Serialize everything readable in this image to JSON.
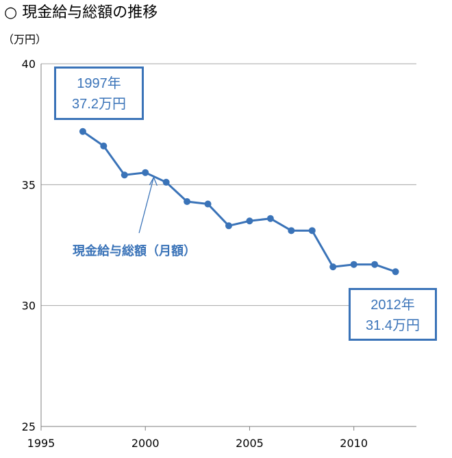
{
  "title": "○ 現金給与総額の推移",
  "unit_label": "（万円）",
  "colors": {
    "series": "#3a73b8",
    "grid": "#a6a6a6",
    "axis": "#7f7f7f"
  },
  "chart_data": {
    "type": "line",
    "title": "現金給与総額の推移",
    "ylabel": "（万円）",
    "xlabel": "",
    "xlim": [
      1995,
      2013
    ],
    "ylim": [
      25,
      40
    ],
    "x_ticks": [
      "1995",
      "2000",
      "2005",
      "2010"
    ],
    "y_ticks": [
      "25",
      "30",
      "35",
      "40"
    ],
    "grid": true,
    "series": [
      {
        "name": "現金給与総額（月額）",
        "x": [
          1997,
          1998,
          1999,
          2000,
          2001,
          2002,
          2003,
          2004,
          2005,
          2006,
          2007,
          2008,
          2009,
          2010,
          2011,
          2012
        ],
        "values": [
          37.2,
          36.6,
          35.4,
          35.5,
          35.1,
          34.3,
          34.2,
          33.3,
          33.5,
          33.6,
          33.1,
          33.1,
          31.6,
          31.7,
          31.7,
          31.4
        ]
      }
    ],
    "annotations": [
      {
        "line1": "1997年",
        "line2": "37.2万円"
      },
      {
        "line1": "2012年",
        "line2": "31.4万円"
      }
    ],
    "series_label": "現金給与総額（月額）"
  }
}
